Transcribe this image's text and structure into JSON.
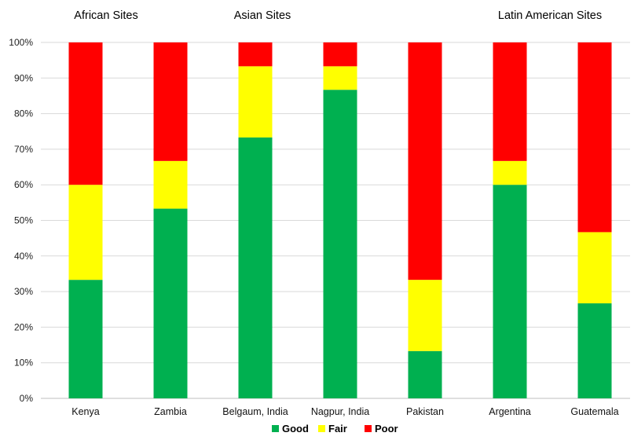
{
  "chart_data": {
    "type": "bar",
    "stacked": true,
    "categories": [
      "Kenya",
      "Zambia",
      "Belgaum, India",
      "Nagpur, India",
      "Pakistan",
      "Argentina",
      "Guatemala"
    ],
    "group_labels": [
      {
        "label": "African Sites",
        "categories": [
          "Kenya",
          "Zambia"
        ]
      },
      {
        "label": "Asian Sites",
        "categories": [
          "Belgaum, India",
          "Nagpur, India",
          "Pakistan"
        ]
      },
      {
        "label": "Latin American Sites",
        "categories": [
          "Argentina",
          "Guatemala"
        ]
      }
    ],
    "series": [
      {
        "name": "Good",
        "color": "#00b050",
        "values": [
          33.3,
          53.3,
          73.3,
          86.7,
          13.3,
          60.0,
          26.7
        ]
      },
      {
        "name": "Fair",
        "color": "#ffff00",
        "values": [
          26.7,
          13.4,
          20.0,
          6.6,
          20.0,
          6.7,
          20.0
        ]
      },
      {
        "name": "Poor",
        "color": "#ff0000",
        "values": [
          40.0,
          33.3,
          6.7,
          6.7,
          66.7,
          33.3,
          53.3
        ]
      }
    ],
    "yticks": [
      "0%",
      "10%",
      "20%",
      "30%",
      "40%",
      "50%",
      "60%",
      "70%",
      "80%",
      "90%",
      "100%"
    ],
    "ylim": [
      0,
      100
    ],
    "grid": true,
    "legend": "bottom",
    "title": "",
    "xlabel": "",
    "ylabel": ""
  }
}
